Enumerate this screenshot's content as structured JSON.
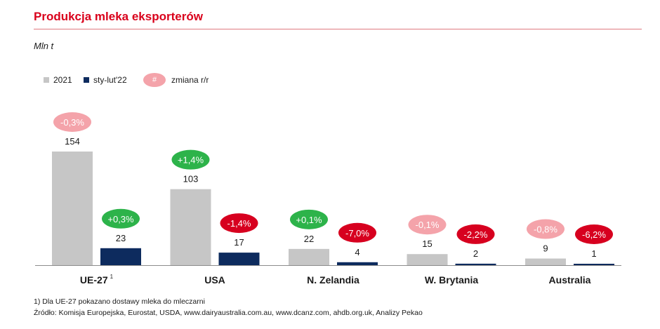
{
  "title": "Produkcja mleka eksporterów",
  "unit": "Mln t",
  "legend": {
    "series_2021": "2021",
    "series_2022": "sty-lut'22",
    "change_symbol": "#",
    "change_label": "zmiana r/r"
  },
  "colors": {
    "series_2021": "#c6c6c6",
    "series_2022": "#0d2b5e",
    "title": "#d9001b",
    "change_positive": "#2db34a",
    "change_negative": "#d7001f",
    "change_light_negative": "#f4a3aa"
  },
  "chart_data": {
    "type": "bar",
    "categories": [
      "UE-27",
      "USA",
      "N. Zelandia",
      "W. Brytania",
      "Australia"
    ],
    "category_superscripts": [
      "1",
      "",
      "",
      "",
      ""
    ],
    "series": [
      {
        "name": "2021",
        "values": [
          154,
          103,
          22,
          15,
          9
        ],
        "labels": [
          "154",
          "103",
          "22",
          "15",
          "9"
        ],
        "changes": [
          "-0,3%",
          "+1,4%",
          "+0,1%",
          "-0,1%",
          "-0,8%"
        ],
        "change_styles": [
          "light-negative",
          "positive",
          "positive",
          "light-negative",
          "light-negative"
        ]
      },
      {
        "name": "sty-lut'22",
        "values": [
          23,
          17,
          4,
          2,
          1
        ],
        "labels": [
          "23",
          "17",
          "4",
          "2",
          "1"
        ],
        "changes": [
          "+0,3%",
          "-1,4%",
          "-7,0%",
          "-2,2%",
          "-6,2%"
        ],
        "change_styles": [
          "positive",
          "negative",
          "negative",
          "negative",
          "negative"
        ]
      }
    ],
    "ylim": [
      0,
      154
    ]
  },
  "footnote": "1) Dla UE-27 pokazano dostawy mleka do mleczarni",
  "source": "Źródło: Komisja Europejska, Eurostat, USDA, www.dairyaustralia.com.au, www.dcanz.com, ahdb.org.uk, Analizy Pekao"
}
